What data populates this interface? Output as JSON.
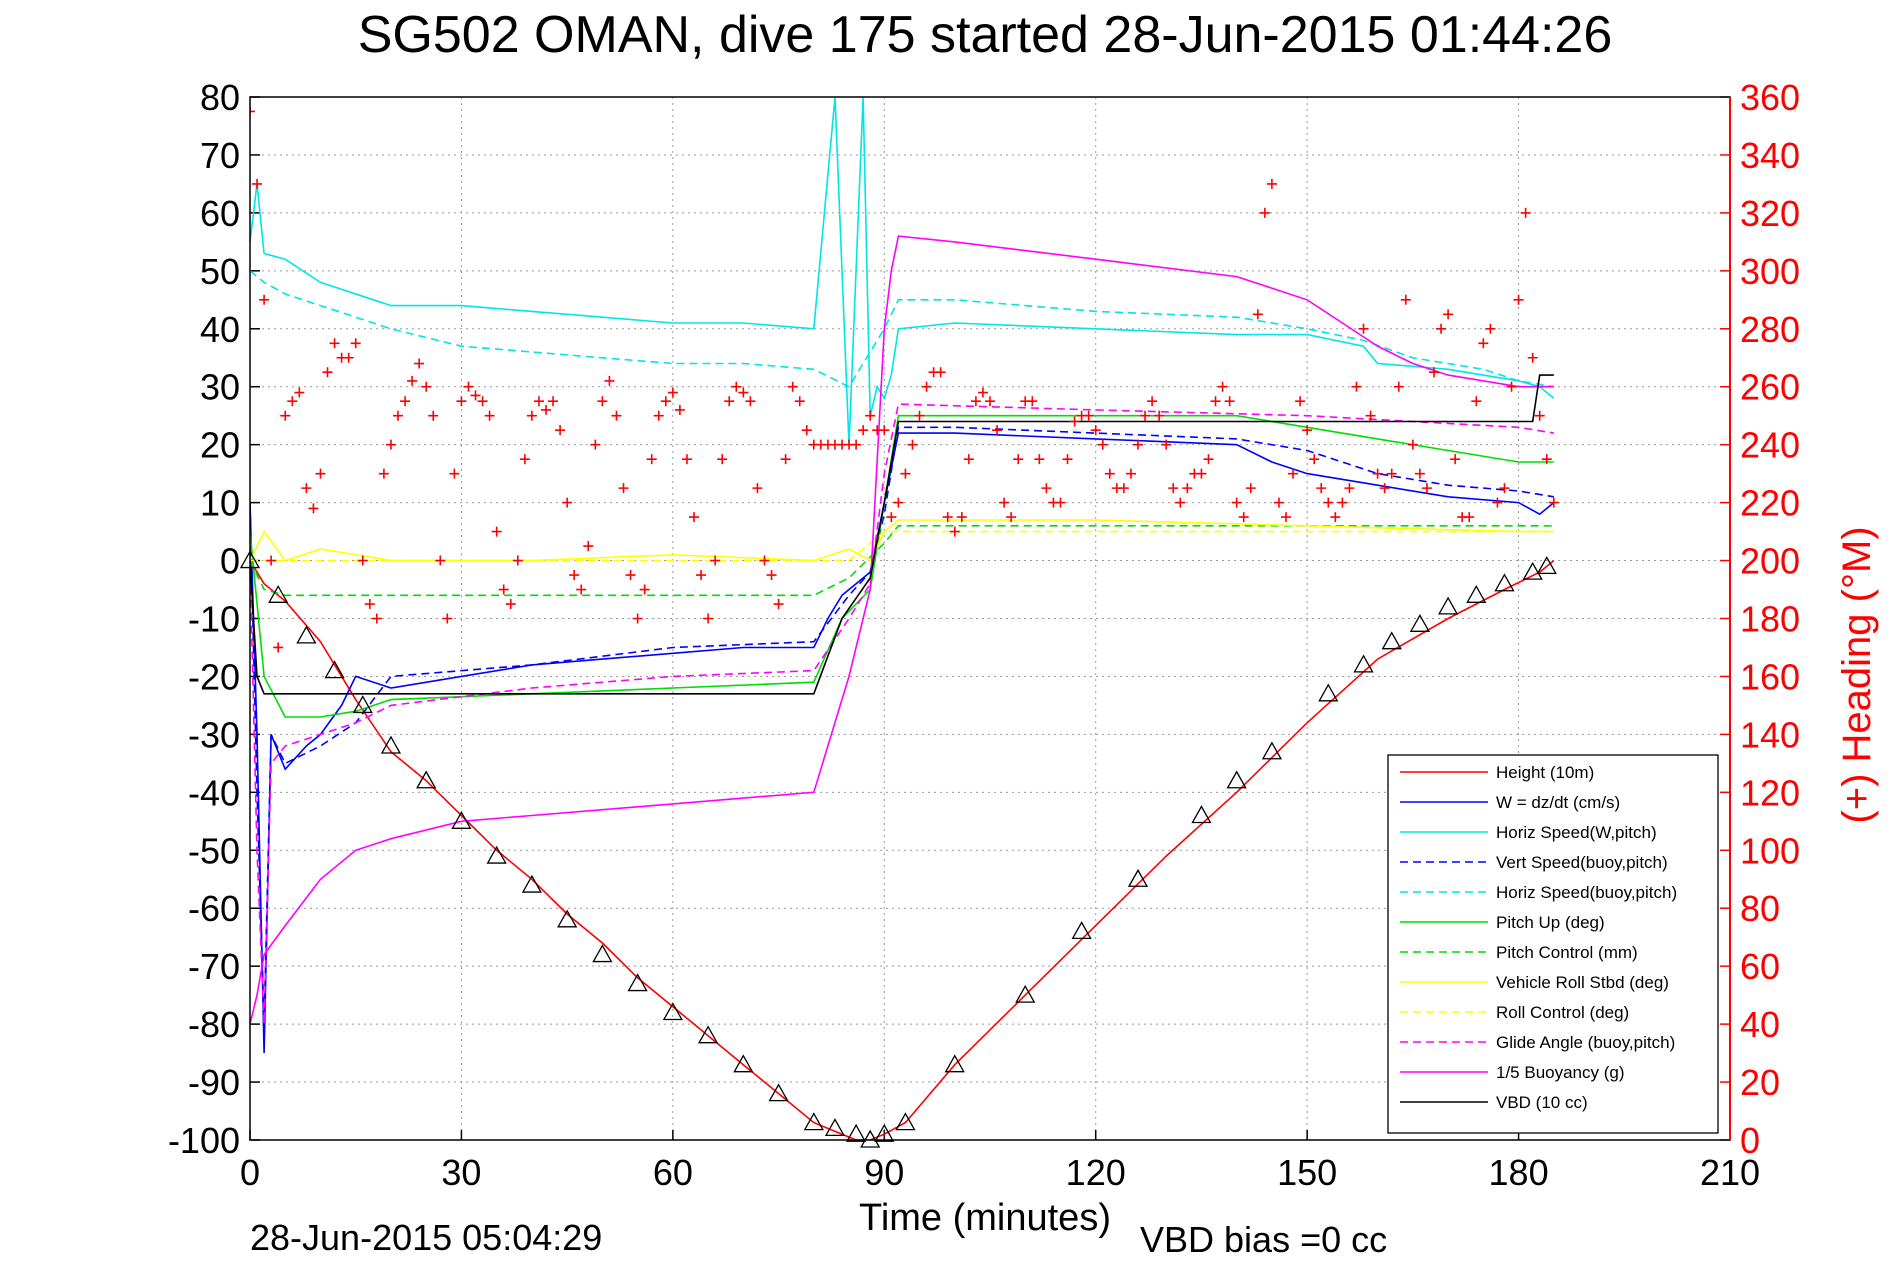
{
  "chart_data": {
    "type": "line",
    "title": "SG502 OMAN, dive 175 started 28-Jun-2015 01:44:26",
    "xlabel": "Time (minutes)",
    "y2label": "(+) Heading (°M)",
    "footer_left": "28-Jun-2015 05:04:29",
    "footer_right": "VBD bias =0 cc",
    "xlim": [
      0,
      210
    ],
    "ylim": [
      -100,
      80
    ],
    "y2lim": [
      0,
      360
    ],
    "x_ticks": [
      "0",
      "30",
      "60",
      "90",
      "120",
      "150",
      "180",
      "210"
    ],
    "y_ticks": [
      "80",
      "70",
      "60",
      "50",
      "40",
      "30",
      "20",
      "10",
      "0",
      "-10",
      "-20",
      "-30",
      "-40",
      "-50",
      "-60",
      "-70",
      "-80",
      "-90",
      "-100"
    ],
    "y2_ticks": [
      "360",
      "340",
      "320",
      "300",
      "280",
      "260",
      "240",
      "220",
      "200",
      "180",
      "160",
      "140",
      "120",
      "100",
      "80",
      "60",
      "40",
      "20",
      "0"
    ],
    "grid": true,
    "legend_position": "bottom-right",
    "colors": {
      "height": "#ff0000",
      "w": "#0000ff",
      "horiz_speed": "#00e5e5",
      "pitch": "#00dd00",
      "roll": "#ffff00",
      "glide": "#ff00ff",
      "buoyancy": "#ff00ff",
      "vbd": "#000000",
      "heading": "#ff0000"
    },
    "series": [
      {
        "name": "Height (10m)",
        "color": "#ff0000",
        "dash": "solid",
        "x": [
          0,
          2,
          5,
          10,
          15,
          20,
          25,
          30,
          35,
          40,
          45,
          50,
          55,
          60,
          65,
          70,
          75,
          80,
          84,
          86,
          88,
          90,
          93,
          100,
          110,
          120,
          130,
          140,
          150,
          160,
          170,
          178,
          183,
          185
        ],
        "y": [
          0,
          -4,
          -7,
          -14,
          -24,
          -33,
          -38,
          -44,
          -50,
          -55,
          -61,
          -66,
          -72,
          -77,
          -82,
          -87,
          -92,
          -97,
          -99,
          -100,
          -100,
          -99,
          -97,
          -87,
          -75,
          -63,
          -51,
          -40,
          -28,
          -17,
          -10,
          -5,
          -2,
          0
        ]
      },
      {
        "name": "W = dz/dt (cm/s)",
        "color": "#0000ff",
        "dash": "solid",
        "x": [
          0,
          1,
          2,
          3,
          5,
          8,
          10,
          13,
          15,
          20,
          30,
          40,
          50,
          60,
          70,
          80,
          82,
          84,
          86,
          88,
          90,
          92,
          100,
          120,
          140,
          145,
          150,
          160,
          170,
          180,
          183,
          185
        ],
        "y": [
          10,
          -30,
          -85,
          -30,
          -36,
          -32,
          -30,
          -25,
          -20,
          -22,
          -20,
          -18,
          -17,
          -16,
          -15,
          -15,
          -10,
          -6,
          -4,
          -2,
          10,
          22,
          22,
          21,
          20,
          17,
          15,
          13,
          11,
          10,
          8,
          10
        ]
      },
      {
        "name": "Horiz Speed(W,pitch)",
        "color": "#00e5e5",
        "dash": "solid",
        "x": [
          0,
          1,
          2,
          5,
          10,
          20,
          30,
          40,
          50,
          60,
          70,
          80,
          83,
          85,
          87,
          88,
          89,
          90,
          91,
          92,
          100,
          120,
          140,
          150,
          158,
          160,
          170,
          180,
          183,
          185
        ],
        "y": [
          55,
          65,
          53,
          52,
          48,
          44,
          44,
          43,
          42,
          41,
          41,
          40,
          80,
          20,
          80,
          25,
          30,
          28,
          32,
          40,
          41,
          40,
          39,
          39,
          37,
          34,
          33,
          31,
          30,
          28
        ]
      },
      {
        "name": "Vert Speed(buoy,pitch)",
        "color": "#0000ff",
        "dash": "dashed",
        "x": [
          0,
          1,
          2,
          3,
          5,
          10,
          15,
          20,
          40,
          60,
          80,
          85,
          88,
          90,
          92,
          100,
          120,
          140,
          150,
          160,
          170,
          180,
          185
        ],
        "y": [
          10,
          -40,
          -80,
          -30,
          -35,
          -32,
          -28,
          -20,
          -18,
          -15,
          -14,
          -6,
          -2,
          8,
          23,
          23,
          22,
          21,
          19,
          15,
          13,
          12,
          11
        ]
      },
      {
        "name": "Horiz Speed(buoy,pitch)",
        "color": "#00e5e5",
        "dash": "dashed",
        "x": [
          0,
          2,
          5,
          10,
          20,
          30,
          40,
          50,
          60,
          70,
          80,
          85,
          90,
          92,
          100,
          120,
          140,
          150,
          158,
          165,
          175,
          180,
          185
        ],
        "y": [
          50,
          48,
          46,
          44,
          40,
          37,
          36,
          35,
          34,
          34,
          33,
          30,
          40,
          45,
          45,
          43,
          42,
          40,
          38,
          35,
          33,
          31,
          30
        ]
      },
      {
        "name": "Pitch Up (deg)",
        "color": "#00dd00",
        "dash": "solid",
        "x": [
          0,
          2,
          5,
          10,
          15,
          20,
          40,
          60,
          80,
          84,
          88,
          90,
          92,
          100,
          120,
          140,
          150,
          160,
          170,
          180,
          185
        ],
        "y": [
          5,
          -20,
          -27,
          -27,
          -26,
          -24,
          -23,
          -22,
          -21,
          -10,
          -5,
          10,
          25,
          25,
          25,
          25,
          23,
          21,
          19,
          17,
          17
        ]
      },
      {
        "name": "Pitch Control (mm)",
        "color": "#00dd00",
        "dash": "dashed",
        "x": [
          0,
          2,
          5,
          80,
          85,
          90,
          92,
          150,
          160,
          185
        ],
        "y": [
          0,
          -5,
          -6,
          -6,
          -3,
          3,
          6,
          6,
          6,
          6
        ]
      },
      {
        "name": "Vehicle Roll Stbd (deg)",
        "color": "#ffff00",
        "dash": "solid",
        "x": [
          0,
          2,
          5,
          10,
          20,
          40,
          60,
          80,
          85,
          88,
          90,
          92,
          120,
          150,
          180,
          185
        ],
        "y": [
          0,
          5,
          0,
          2,
          0,
          0,
          1,
          0,
          2,
          0,
          5,
          7,
          7,
          6,
          5,
          5
        ]
      },
      {
        "name": "Roll Control (deg)",
        "color": "#ffff00",
        "dash": "dashed",
        "x": [
          0,
          5,
          10,
          40,
          80,
          85,
          90,
          92,
          150,
          185
        ],
        "y": [
          0,
          0,
          0,
          0,
          0,
          0,
          5,
          5,
          5,
          5
        ]
      },
      {
        "name": "Glide Angle (buoy,pitch)",
        "color": "#ff00ff",
        "dash": "dashed",
        "x": [
          0,
          1,
          2,
          3,
          5,
          10,
          15,
          20,
          40,
          60,
          80,
          85,
          88,
          90,
          92,
          120,
          150,
          165,
          180,
          185
        ],
        "y": [
          0,
          -50,
          -80,
          -35,
          -32,
          -30,
          -28,
          -25,
          -22,
          -20,
          -19,
          -10,
          -4,
          15,
          27,
          26,
          25,
          24,
          23,
          22
        ]
      },
      {
        "name": "1/5 Buoyancy (g)",
        "color": "#ff00ff",
        "dash": "solid",
        "x": [
          0,
          1,
          2,
          5,
          10,
          15,
          20,
          30,
          40,
          60,
          80,
          85,
          88,
          90,
          91,
          92,
          100,
          120,
          140,
          150,
          155,
          160,
          165,
          170,
          180,
          185
        ],
        "y": [
          -80,
          -75,
          -68,
          -63,
          -55,
          -50,
          -48,
          -45,
          -44,
          -42,
          -40,
          -20,
          -5,
          40,
          50,
          56,
          55,
          52,
          49,
          45,
          41,
          37,
          34,
          32,
          30,
          30
        ]
      },
      {
        "name": "VBD (10 cc)",
        "color": "#000000",
        "dash": "solid",
        "x": [
          0,
          1,
          2,
          80,
          84,
          88,
          90,
          92,
          180,
          182,
          183,
          185
        ],
        "y": [
          0,
          -20,
          -23,
          -23,
          -10,
          -3,
          10,
          24,
          24,
          24,
          32,
          32
        ]
      }
    ],
    "heading_markers": {
      "name": "(+) Heading (°M)",
      "color": "#ff0000",
      "x": [
        0,
        1,
        2,
        3,
        4,
        5,
        6,
        7,
        8,
        9,
        10,
        11,
        12,
        13,
        14,
        15,
        16,
        17,
        18,
        19,
        20,
        21,
        22,
        23,
        24,
        25,
        26,
        27,
        28,
        29,
        30,
        31,
        32,
        33,
        34,
        35,
        36,
        37,
        38,
        39,
        40,
        41,
        42,
        43,
        44,
        45,
        46,
        47,
        48,
        49,
        50,
        51,
        52,
        53,
        54,
        55,
        56,
        57,
        58,
        59,
        60,
        61,
        62,
        63,
        64,
        65,
        66,
        67,
        68,
        69,
        70,
        71,
        72,
        73,
        74,
        75,
        76,
        77,
        78,
        79,
        80,
        81,
        82,
        83,
        84,
        85,
        86,
        87,
        88,
        89,
        90,
        91,
        92,
        93,
        94,
        95,
        96,
        97,
        98,
        99,
        100,
        101,
        102,
        103,
        104,
        105,
        106,
        107,
        108,
        109,
        110,
        111,
        112,
        113,
        114,
        115,
        116,
        117,
        118,
        119,
        120,
        121,
        122,
        123,
        124,
        125,
        126,
        127,
        128,
        129,
        130,
        131,
        132,
        133,
        134,
        135,
        136,
        137,
        138,
        139,
        140,
        141,
        142,
        143,
        144,
        145,
        146,
        147,
        148,
        149,
        150,
        151,
        152,
        153,
        154,
        155,
        156,
        157,
        158,
        159,
        160,
        161,
        162,
        163,
        164,
        165,
        166,
        167,
        168,
        169,
        170,
        171,
        172,
        173,
        174,
        175,
        176,
        177,
        178,
        179,
        180,
        181,
        182,
        183,
        184,
        185
      ],
      "y": [
        355,
        330,
        290,
        200,
        170,
        250,
        255,
        258,
        225,
        218,
        230,
        265,
        275,
        270,
        270,
        275,
        200,
        185,
        180,
        230,
        240,
        250,
        255,
        262,
        268,
        260,
        250,
        200,
        180,
        230,
        255,
        260,
        257,
        255,
        250,
        210,
        190,
        185,
        200,
        235,
        250,
        255,
        252,
        255,
        245,
        220,
        195,
        190,
        205,
        240,
        255,
        262,
        250,
        225,
        195,
        180,
        190,
        235,
        250,
        255,
        258,
        252,
        235,
        215,
        195,
        180,
        200,
        235,
        255,
        260,
        258,
        255,
        225,
        200,
        195,
        185,
        235,
        260,
        255,
        245,
        240,
        240,
        240,
        240,
        240,
        240,
        240,
        245,
        250,
        245,
        245,
        215,
        220,
        230,
        240,
        250,
        260,
        265,
        265,
        215,
        210,
        215,
        235,
        255,
        258,
        255,
        245,
        220,
        215,
        235,
        255,
        255,
        235,
        225,
        220,
        220,
        235,
        248,
        250,
        250,
        245,
        240,
        230,
        225,
        225,
        230,
        240,
        250,
        255,
        250,
        240,
        225,
        220,
        225,
        230,
        230,
        235,
        255,
        260,
        255,
        220,
        215,
        225,
        285,
        320,
        330,
        220,
        215,
        230,
        255,
        245,
        235,
        225,
        220,
        215,
        220,
        225,
        260,
        280,
        250,
        230,
        225,
        230,
        260,
        290,
        240,
        230,
        225,
        265,
        280,
        285,
        235,
        215,
        215,
        255,
        275,
        280,
        220,
        225,
        260,
        290,
        320,
        270,
        250,
        235,
        220
      ]
    },
    "vbd_triangles": {
      "x": [
        0,
        4,
        8,
        12,
        16,
        20,
        25,
        30,
        35,
        40,
        45,
        50,
        55,
        60,
        65,
        70,
        75,
        80,
        83,
        86,
        88,
        90,
        93,
        100,
        110,
        118,
        126,
        135,
        140,
        145,
        153,
        158,
        162,
        166,
        170,
        174,
        178,
        182,
        184
      ],
      "y": [
        0,
        -6,
        -13,
        -19,
        -25,
        -32,
        -38,
        -45,
        -51,
        -56,
        -62,
        -68,
        -73,
        -78,
        -82,
        -87,
        -92,
        -97,
        -98,
        -99,
        -100,
        -99,
        -97,
        -87,
        -75,
        -64,
        -55,
        -44,
        -38,
        -33,
        -23,
        -18,
        -14,
        -11,
        -8,
        -6,
        -4,
        -2,
        -1
      ]
    }
  }
}
